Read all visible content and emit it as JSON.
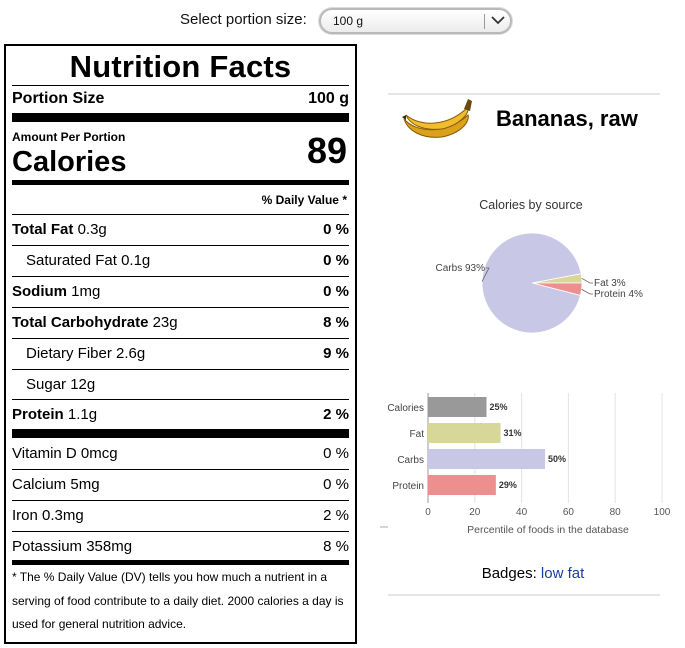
{
  "portion": {
    "label": "Select portion size:",
    "selected": "100 g"
  },
  "label": {
    "title": "Nutrition Facts",
    "portion_size_label": "Portion Size",
    "portion_size_value": "100 g",
    "amount_per_portion": "Amount Per Portion",
    "calories_label": "Calories",
    "calories_value": "89",
    "daily_value_header": "% Daily Value *",
    "rows": [
      {
        "name": "Total Fat",
        "amount": "0.3g",
        "pct": "0 %"
      },
      {
        "name": "Saturated Fat",
        "amount": "0.1g",
        "pct": "0 %"
      },
      {
        "name": "Sodium",
        "amount": "1mg",
        "pct": "0 %"
      },
      {
        "name": "Total Carbohydrate",
        "amount": "23g",
        "pct": "8 %"
      },
      {
        "name": "Dietary Fiber",
        "amount": "2.6g",
        "pct": "9 %"
      },
      {
        "name": "Sugar",
        "amount": "12g",
        "pct": ""
      },
      {
        "name": "Protein",
        "amount": "1.1g",
        "pct": "2 %"
      }
    ],
    "vitamins": [
      {
        "name": "Vitamin D",
        "amount": "0mcg",
        "pct": "0 %"
      },
      {
        "name": "Calcium",
        "amount": "5mg",
        "pct": "0 %"
      },
      {
        "name": "Iron",
        "amount": "0.3mg",
        "pct": "2 %"
      },
      {
        "name": "Potassium",
        "amount": "358mg",
        "pct": "8 %"
      }
    ],
    "footnote": "* The % Daily Value (DV) tells you how much a nutrient in a serving of food contribute to a daily diet. 2000 calories a day is used for general nutrition advice."
  },
  "food": {
    "title": "Bananas, raw",
    "image_icon": "banana-icon"
  },
  "chart_data": [
    {
      "type": "pie",
      "title": "Calories by source",
      "slices": [
        {
          "label": "Carbs",
          "value": 93,
          "display": "Carbs 93%",
          "color": "#c8c8e6"
        },
        {
          "label": "Fat",
          "value": 3,
          "display": "Fat 3%",
          "color": "#d7d79a"
        },
        {
          "label": "Protein",
          "value": 4,
          "display": "Protein 4%",
          "color": "#ee8f8f"
        }
      ]
    },
    {
      "type": "bar",
      "orientation": "horizontal",
      "categories": [
        "Calories",
        "Fat",
        "Carbs",
        "Protein"
      ],
      "values": [
        25,
        31,
        50,
        29
      ],
      "value_labels": [
        "25%",
        "31%",
        "50%",
        "29%"
      ],
      "colors": [
        "#999999",
        "#d7d79a",
        "#c8c8e6",
        "#ee8f8f"
      ],
      "xlabel": "Percentile of foods in the database",
      "xlim": [
        0,
        100
      ],
      "xticks": [
        "0",
        "20",
        "40",
        "60",
        "80",
        "100"
      ],
      "grid": true
    }
  ],
  "badges": {
    "label": "Badges:",
    "items": [
      "low fat"
    ]
  }
}
